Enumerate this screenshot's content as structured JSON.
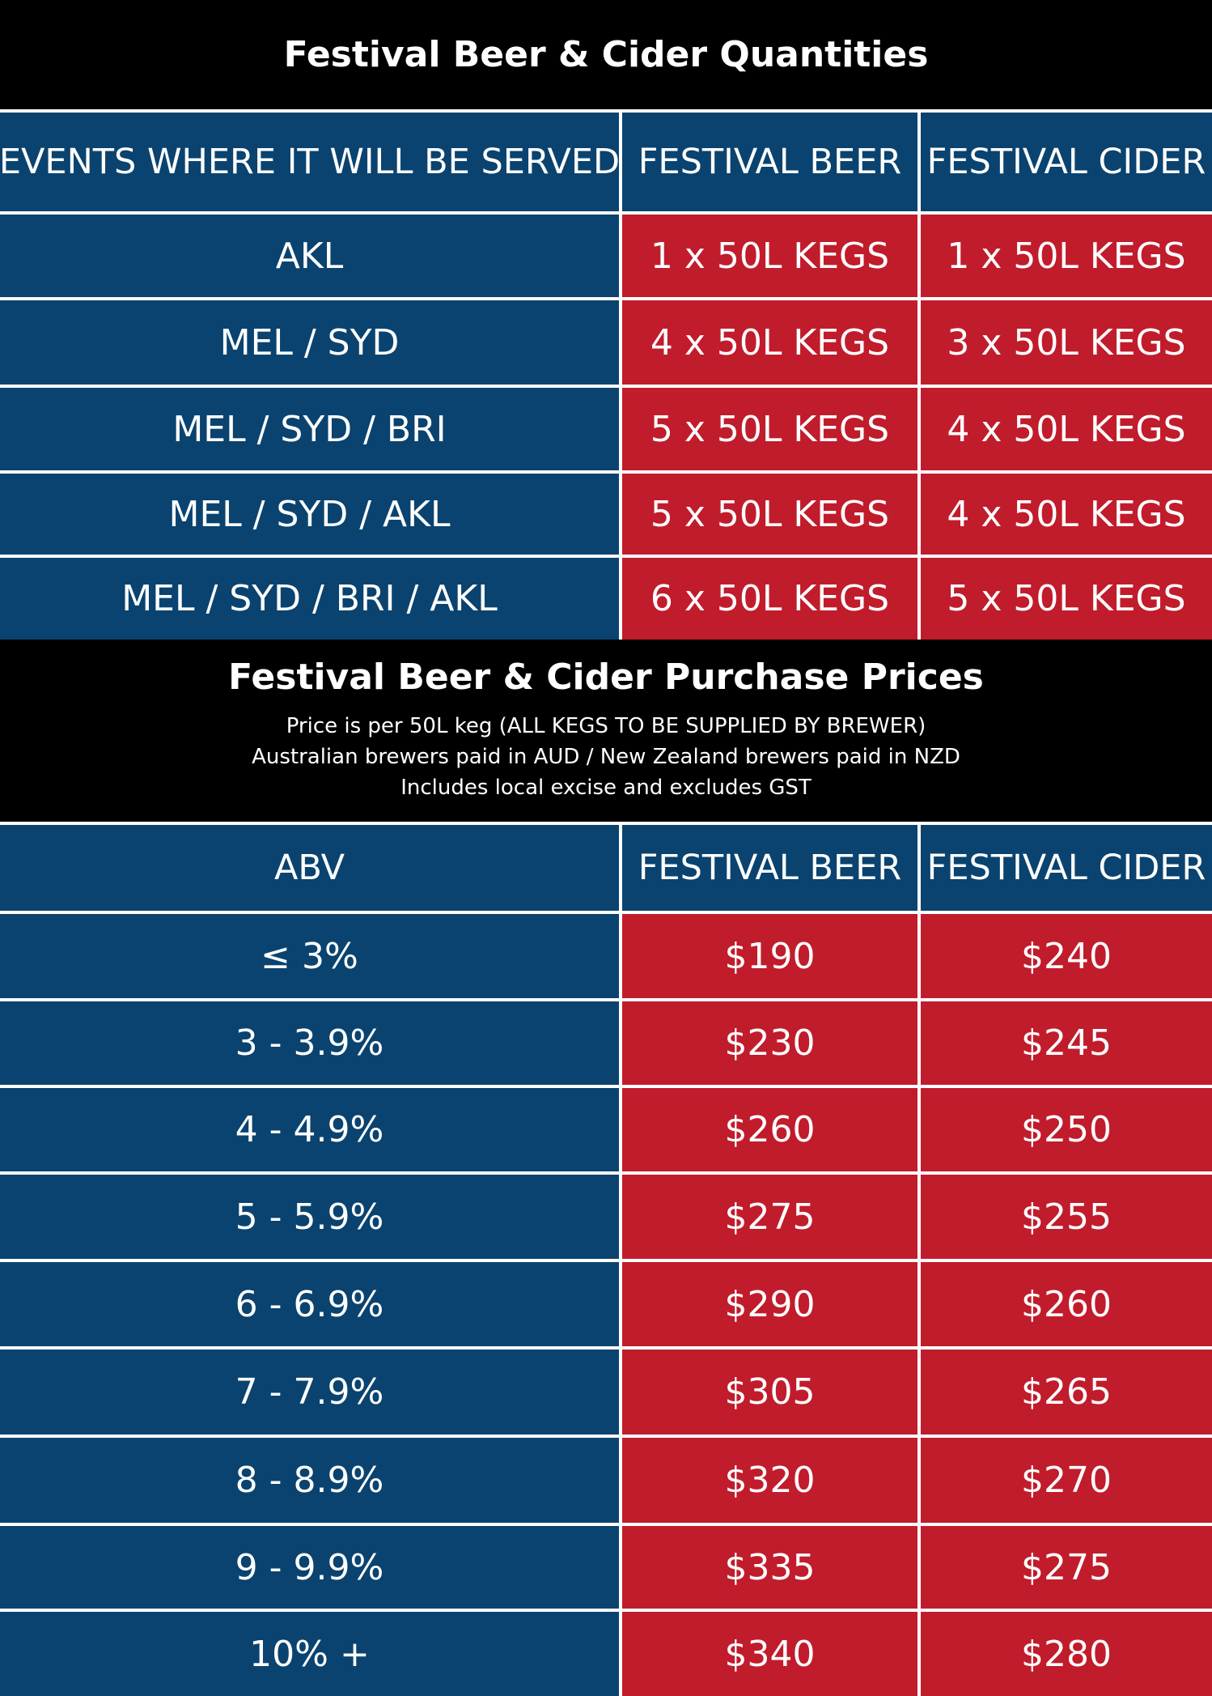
{
  "quantities": {
    "title": "Festival Beer & Cider Quantities",
    "headers": [
      "EVENTS WHERE IT WILL BE SERVED",
      "FESTIVAL BEER",
      "FESTIVAL CIDER"
    ],
    "rows": [
      [
        "AKL",
        "1 x 50L KEGS",
        "1 x 50L KEGS"
      ],
      [
        "MEL / SYD",
        "4 x 50L KEGS",
        "3 x 50L KEGS"
      ],
      [
        "MEL / SYD / BRI",
        "5 x 50L KEGS",
        "4 x 50L KEGS"
      ],
      [
        "MEL / SYD / AKL",
        "5 x 50L KEGS",
        "4 x 50L KEGS"
      ],
      [
        "MEL / SYD / BRI / AKL",
        "6 x 50L KEGS",
        "5 x 50L KEGS"
      ]
    ]
  },
  "prices": {
    "title": "Festival Beer & Cider Purchase Prices",
    "notes": [
      "Price is per 50L keg (ALL KEGS TO BE SUPPLIED BY BREWER)",
      "Australian brewers paid in AUD / New Zealand brewers paid in NZD",
      "Includes local excise and excludes GST"
    ],
    "headers": [
      "ABV",
      "FESTIVAL BEER",
      "FESTIVAL CIDER"
    ],
    "rows": [
      [
        "≤ 3%",
        "$190",
        "$240"
      ],
      [
        "3 - 3.9%",
        "$230",
        "$245"
      ],
      [
        "4 - 4.9%",
        "$260",
        "$250"
      ],
      [
        "5 - 5.9%",
        "$275",
        "$255"
      ],
      [
        "6 - 6.9%",
        "$290",
        "$260"
      ],
      [
        "7 - 7.9%",
        "$305",
        "$265"
      ],
      [
        "8 - 8.9%",
        "$320",
        "$270"
      ],
      [
        "9 - 9.9%",
        "$335",
        "$275"
      ],
      [
        "10% +",
        "$340",
        "$280"
      ]
    ]
  },
  "colors": {
    "band": "#000000",
    "blue": "#0a436f",
    "red": "#c11c2c",
    "gridline": "#ffffff"
  }
}
